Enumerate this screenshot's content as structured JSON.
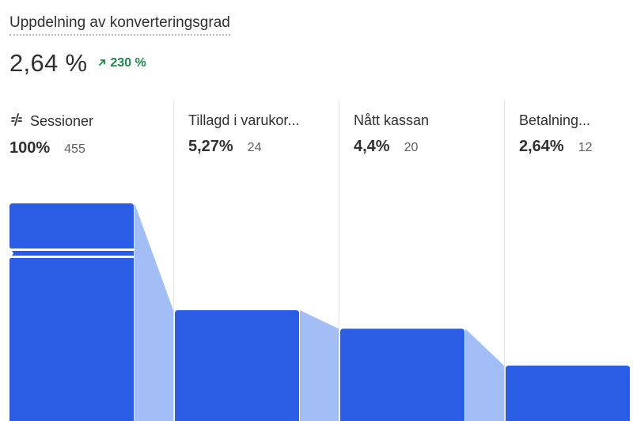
{
  "card": {
    "title": "Uppdelning av konverteringsgrad",
    "value": "2,64 %",
    "delta": "230 %"
  },
  "chart_data": {
    "type": "bar",
    "title": "Uppdelning av konverteringsgrad",
    "categories": [
      "Sessioner",
      "Tillagd i varukor...",
      "Nått kassan",
      "Betalning..."
    ],
    "values": [
      455,
      24,
      20,
      12
    ],
    "percent_labels": [
      "100%",
      "5,27%",
      "4,4%",
      "2,64%"
    ],
    "count_labels": [
      "455",
      "24",
      "20",
      "12"
    ],
    "axis_break_on_first_bar": true,
    "bar_color": "#2b5ce6",
    "connector_color": "#a3bdf5",
    "grid": false
  },
  "colors": {
    "positive_delta": "#1a8a4a",
    "text": "#303030",
    "muted": "#616161"
  }
}
